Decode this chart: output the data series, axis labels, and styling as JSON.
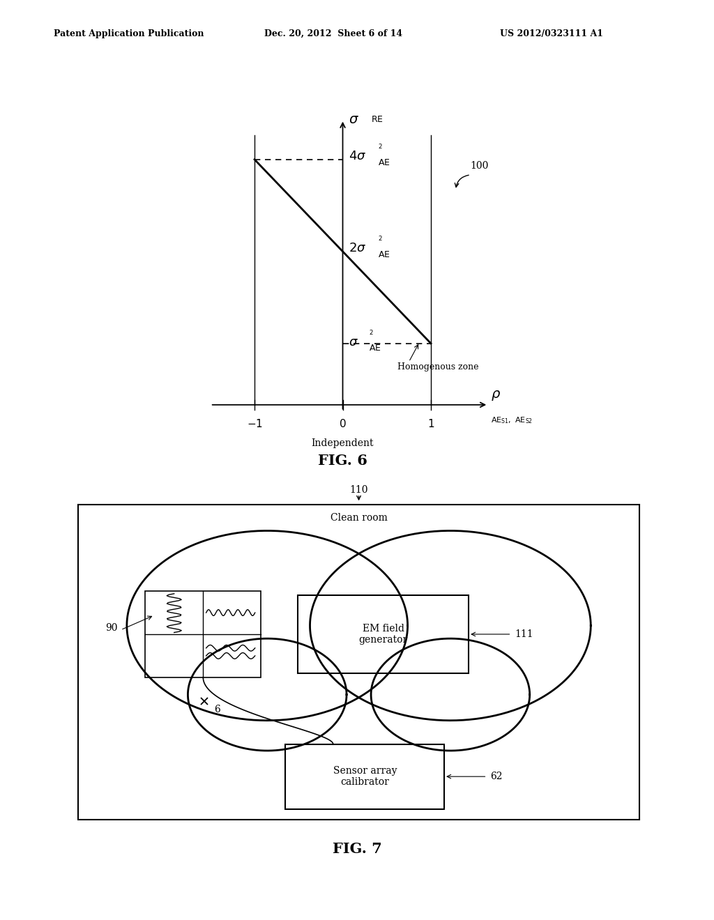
{
  "bg_color": "#ffffff",
  "header_left": "Patent Application Publication",
  "header_mid": "Dec. 20, 2012  Sheet 6 of 14",
  "header_right": "US 2012/0323111 A1",
  "fig6_title": "FIG. 6",
  "fig6_ref": "100",
  "fig6_independent": "Independent",
  "fig6_homogenous": "Homogenous zone",
  "fig7_title": "FIG. 7",
  "fig7_ref110": "110",
  "fig7_clean_room": "Clean room",
  "fig7_em_label": "EM field\ngenerator",
  "fig7_em_ref": "111",
  "fig7_sensor_label": "Sensor array\ncalibrator",
  "fig7_sensor_ref": "62",
  "fig7_ref90": "90",
  "fig7_ref6": "6"
}
